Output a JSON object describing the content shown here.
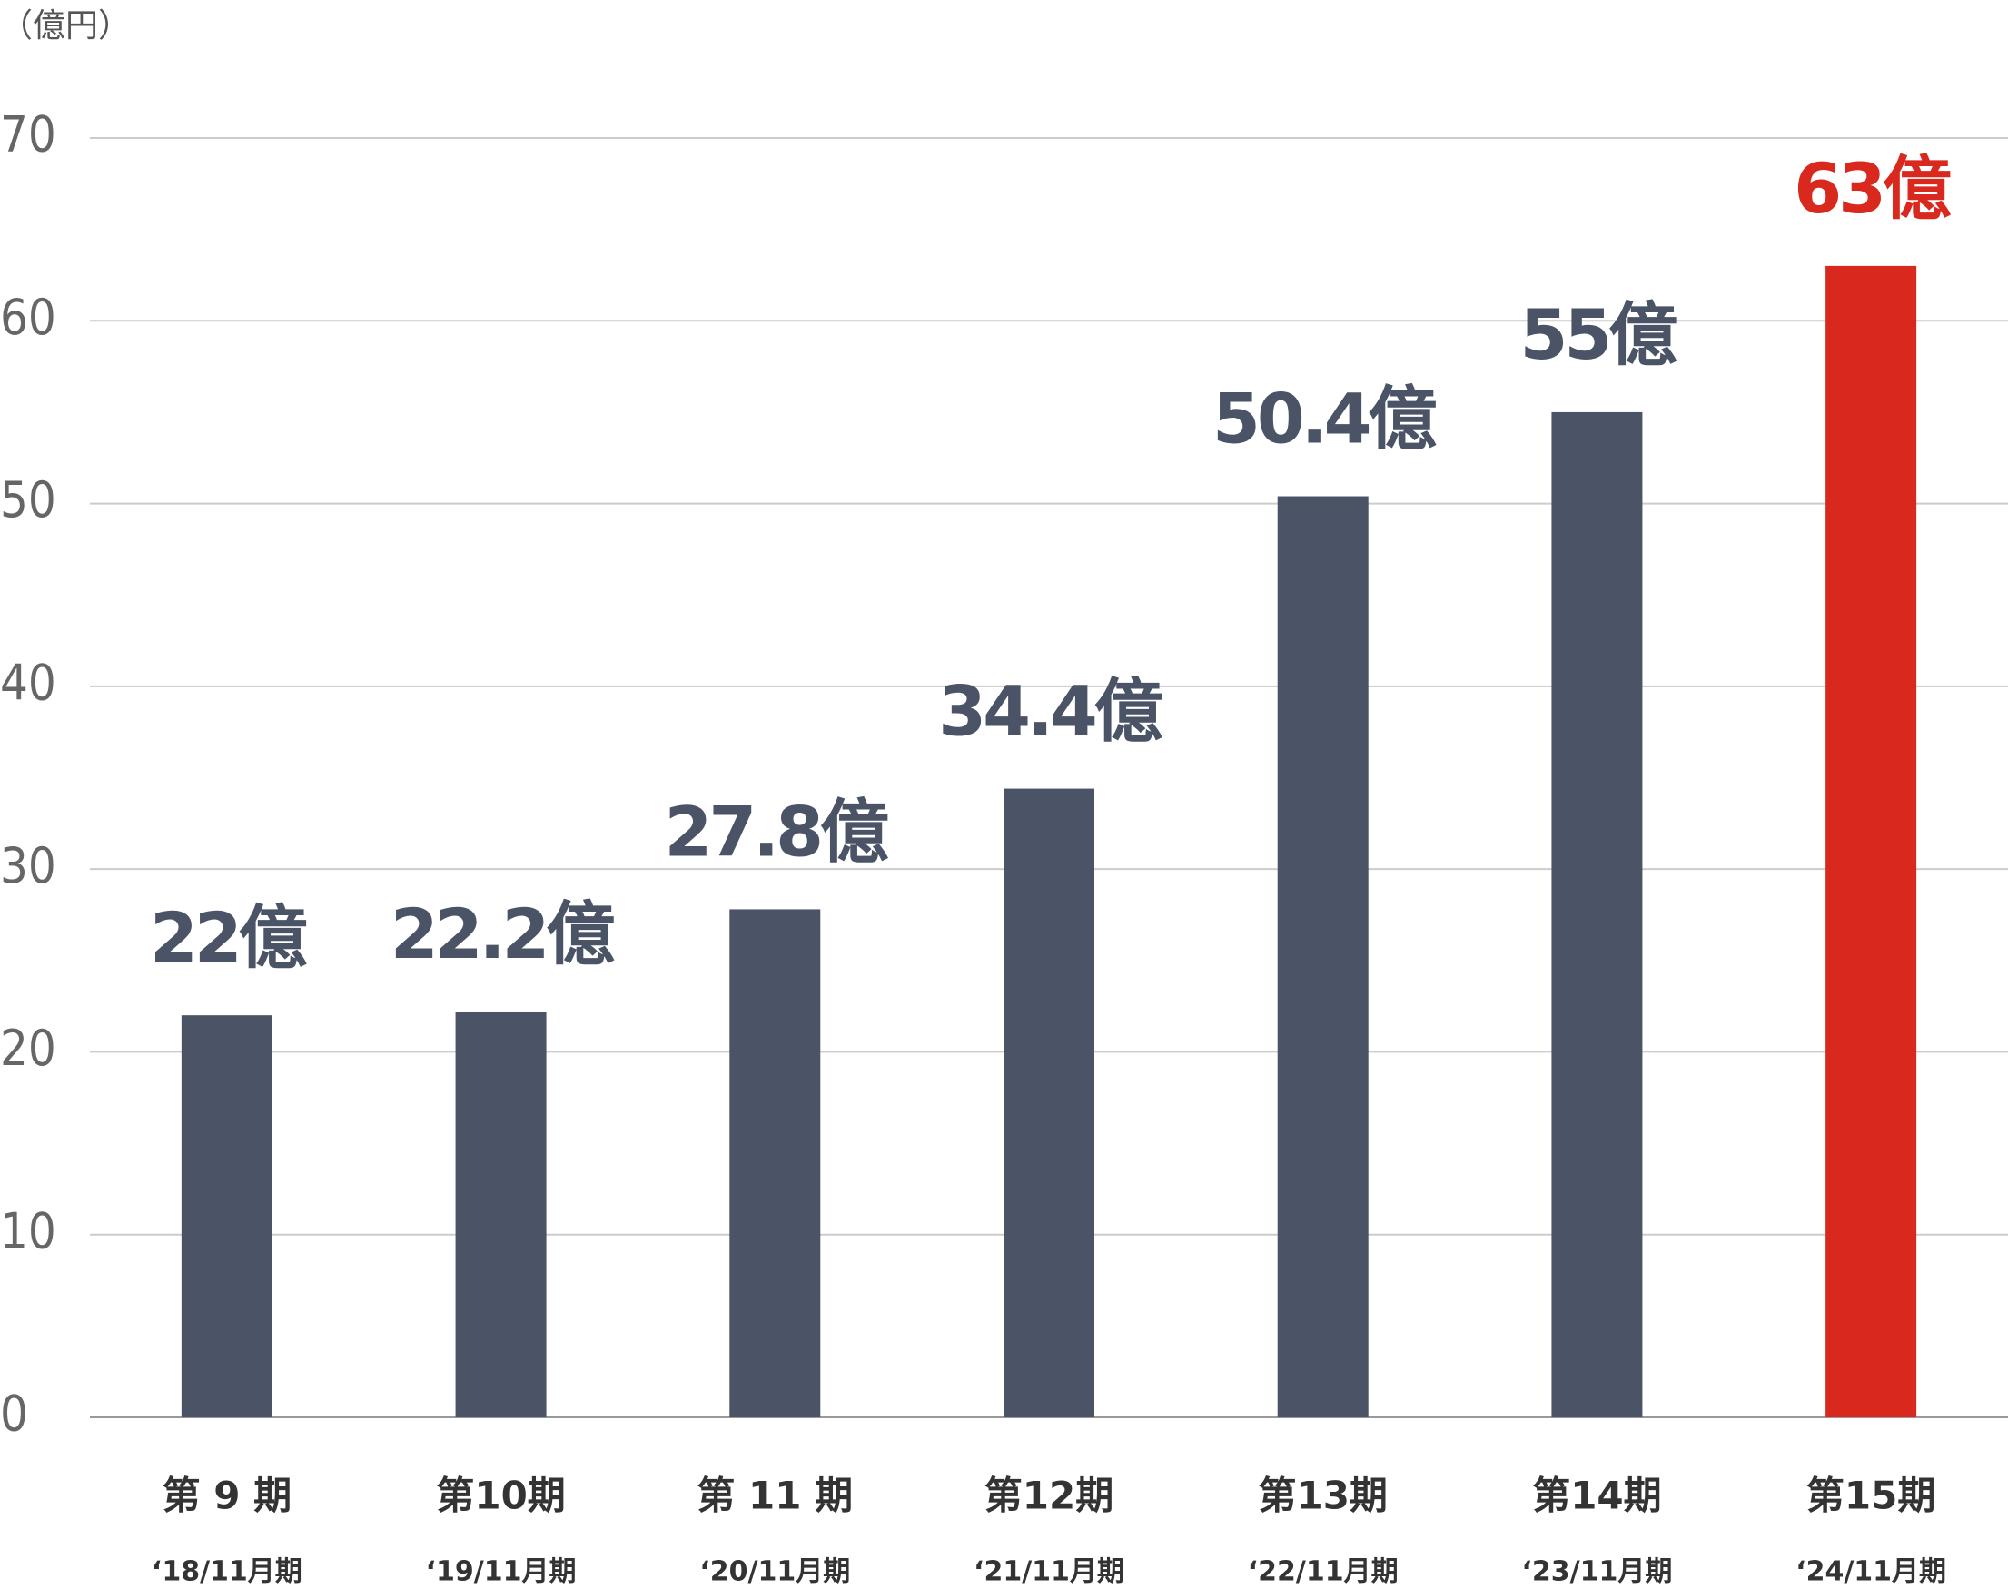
{
  "chart_data": {
    "type": "bar",
    "y_label": "（億円）",
    "categories": [
      "第 9 期",
      "第10期",
      "第 11 期",
      "第12期",
      "第13期",
      "第14期",
      "第15期"
    ],
    "fiscal_years": [
      "‘18/11月期",
      "‘19/11月期",
      "‘20/11月期",
      "‘21/11月期",
      "‘22/11月期",
      "‘23/11月期",
      "‘24/11月期"
    ],
    "values": [
      22,
      22.2,
      27.8,
      34.4,
      50.4,
      55,
      63
    ],
    "value_labels": [
      "22億",
      "22.2億",
      "27.8億",
      "34.4億",
      "50.4億",
      "55億",
      "63億"
    ],
    "colors": [
      "#4a5466",
      "#4a5466",
      "#4a5466",
      "#4a5466",
      "#4a5466",
      "#4a5466",
      "#d9281e"
    ],
    "ylim": [
      0,
      70
    ],
    "yticks": [
      0,
      10,
      20,
      30,
      40,
      50,
      60,
      70
    ],
    "grid": true
  }
}
